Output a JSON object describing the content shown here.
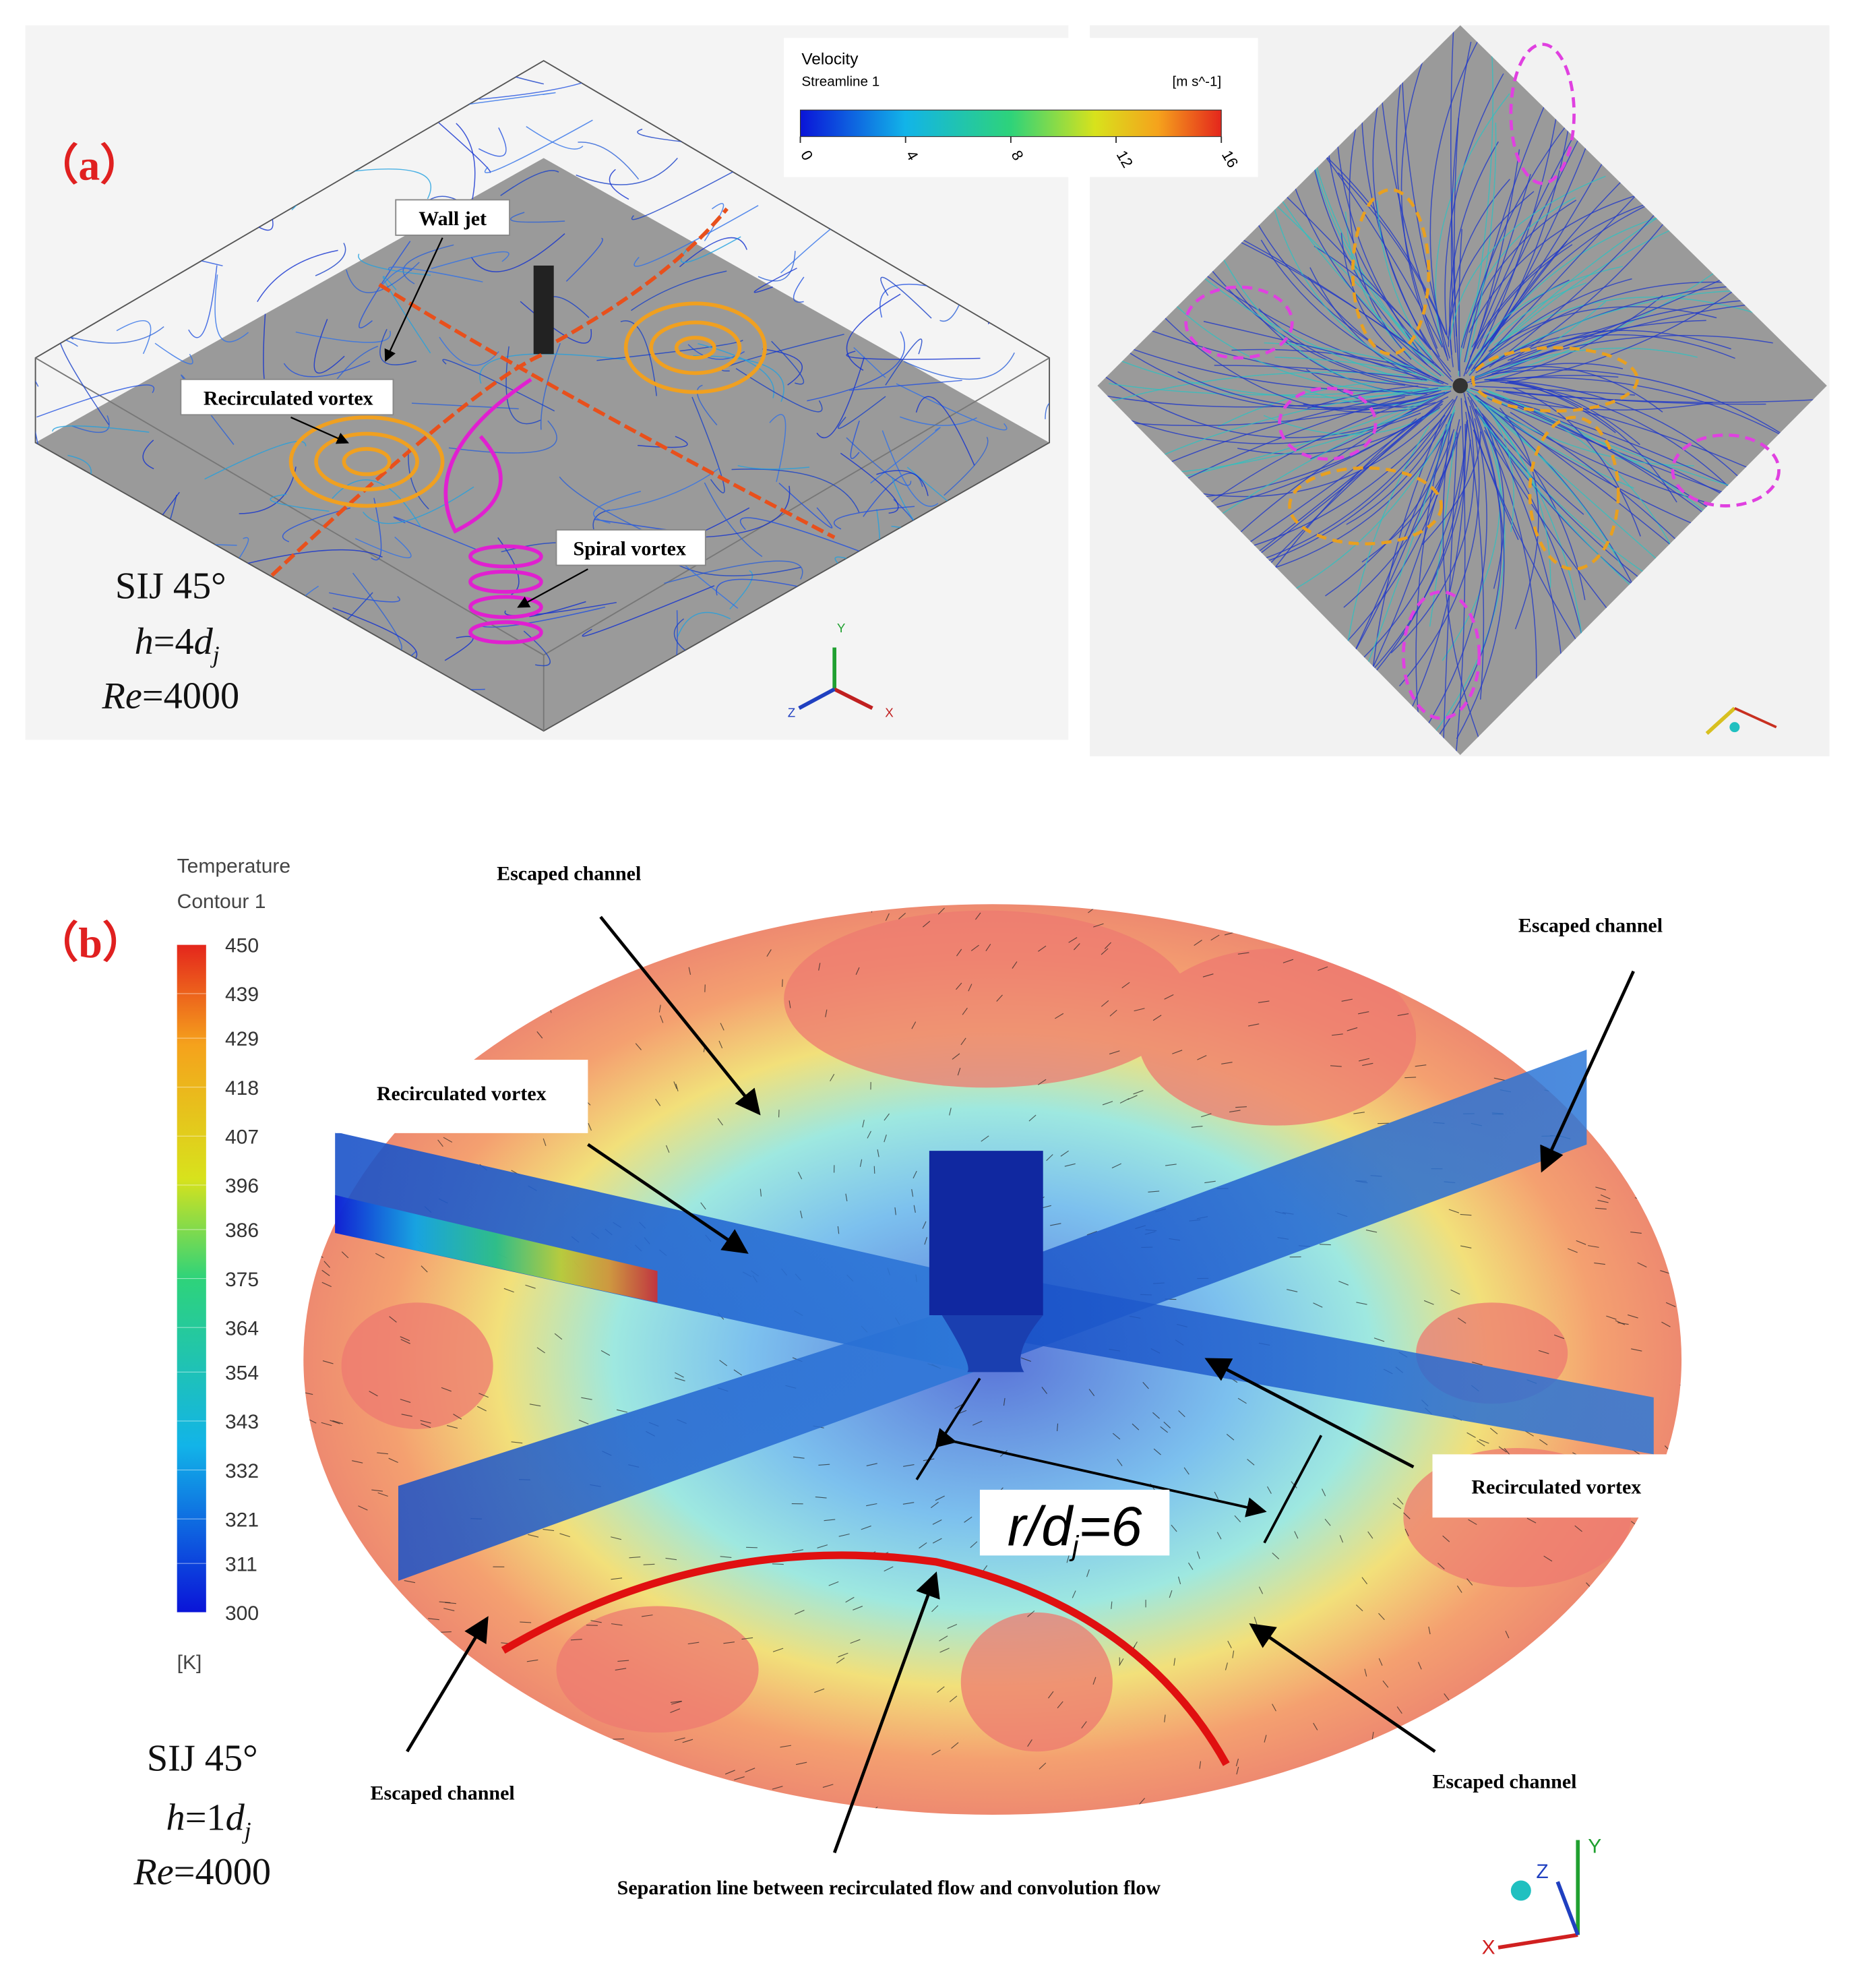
{
  "panel_a": {
    "label": "（a）",
    "colorbar": {
      "title": "Velocity",
      "subtitle": "Streamline 1",
      "unit": "[m s^-1]",
      "ticks": [
        0,
        4,
        8,
        12,
        16
      ]
    },
    "annotations": [
      "Wall jet",
      "Recirculated vortex",
      "Spiral vortex"
    ],
    "params": {
      "name": "SIJ 45°",
      "h": {
        "var": "h",
        "eq": "=4",
        "d": "d",
        "sub": "j"
      },
      "re": {
        "var": "Re",
        "eq": "=4000"
      }
    },
    "axes": [
      "Y",
      "Z",
      "X"
    ]
  },
  "panel_b": {
    "label": "（b）",
    "colorbar": {
      "title": "Temperature",
      "subtitle": "Contour 1",
      "unit": "[K]",
      "ticks": [
        450,
        439,
        429,
        418,
        407,
        396,
        386,
        375,
        364,
        354,
        343,
        332,
        321,
        311,
        300
      ]
    },
    "annotations": [
      "Escaped channel",
      "Escaped channel",
      "Recirculated vortex",
      "Recirculated vortex",
      "Escaped channel",
      "Escaped channel",
      "Separation line between recirculated flow and convolution flow"
    ],
    "radius_label": {
      "var": "r/d",
      "sub": "j",
      "eq": "=6"
    },
    "params": {
      "name": "SIJ 45°",
      "h": {
        "var": "h",
        "eq": "=1",
        "d": "d",
        "sub": "j"
      },
      "re": {
        "var": "Re",
        "eq": "=4000"
      }
    },
    "axes": [
      "Y",
      "Z",
      "X"
    ]
  }
}
